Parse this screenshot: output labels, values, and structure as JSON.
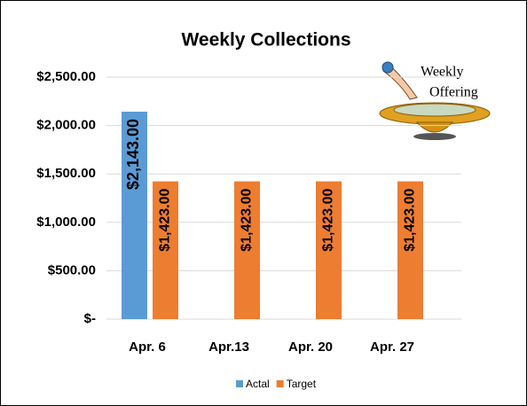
{
  "chart_data": {
    "type": "bar",
    "title": "Weekly Collections",
    "categories": [
      "Apr. 6",
      "Apr.13",
      "Apr. 20",
      "Apr. 27"
    ],
    "series": [
      {
        "name": "Actal",
        "color": "#5b9bd5",
        "values": [
          2143,
          null,
          null,
          null
        ],
        "value_labels": [
          "$2,143.00",
          null,
          null,
          null
        ]
      },
      {
        "name": "Target",
        "color": "#ed7d31",
        "values": [
          1423,
          1423,
          1423,
          1423
        ],
        "value_labels": [
          "$1,423.00",
          "$1,423.00",
          "$1,423.00",
          "$1,423.00"
        ]
      }
    ],
    "ylim": [
      0,
      2500
    ],
    "yticks": [
      {
        "value": 0,
        "label": "$-"
      },
      {
        "value": 500,
        "label": "$500.00"
      },
      {
        "value": 1000,
        "label": "$1,000.00"
      },
      {
        "value": 1500,
        "label": "$1,500.00"
      },
      {
        "value": 2000,
        "label": "$2,000.00"
      },
      {
        "value": 2500,
        "label": "$2,500.00"
      }
    ],
    "grid": true,
    "legend": "bottom",
    "annotations": [
      "Weekly",
      "Offering"
    ]
  }
}
